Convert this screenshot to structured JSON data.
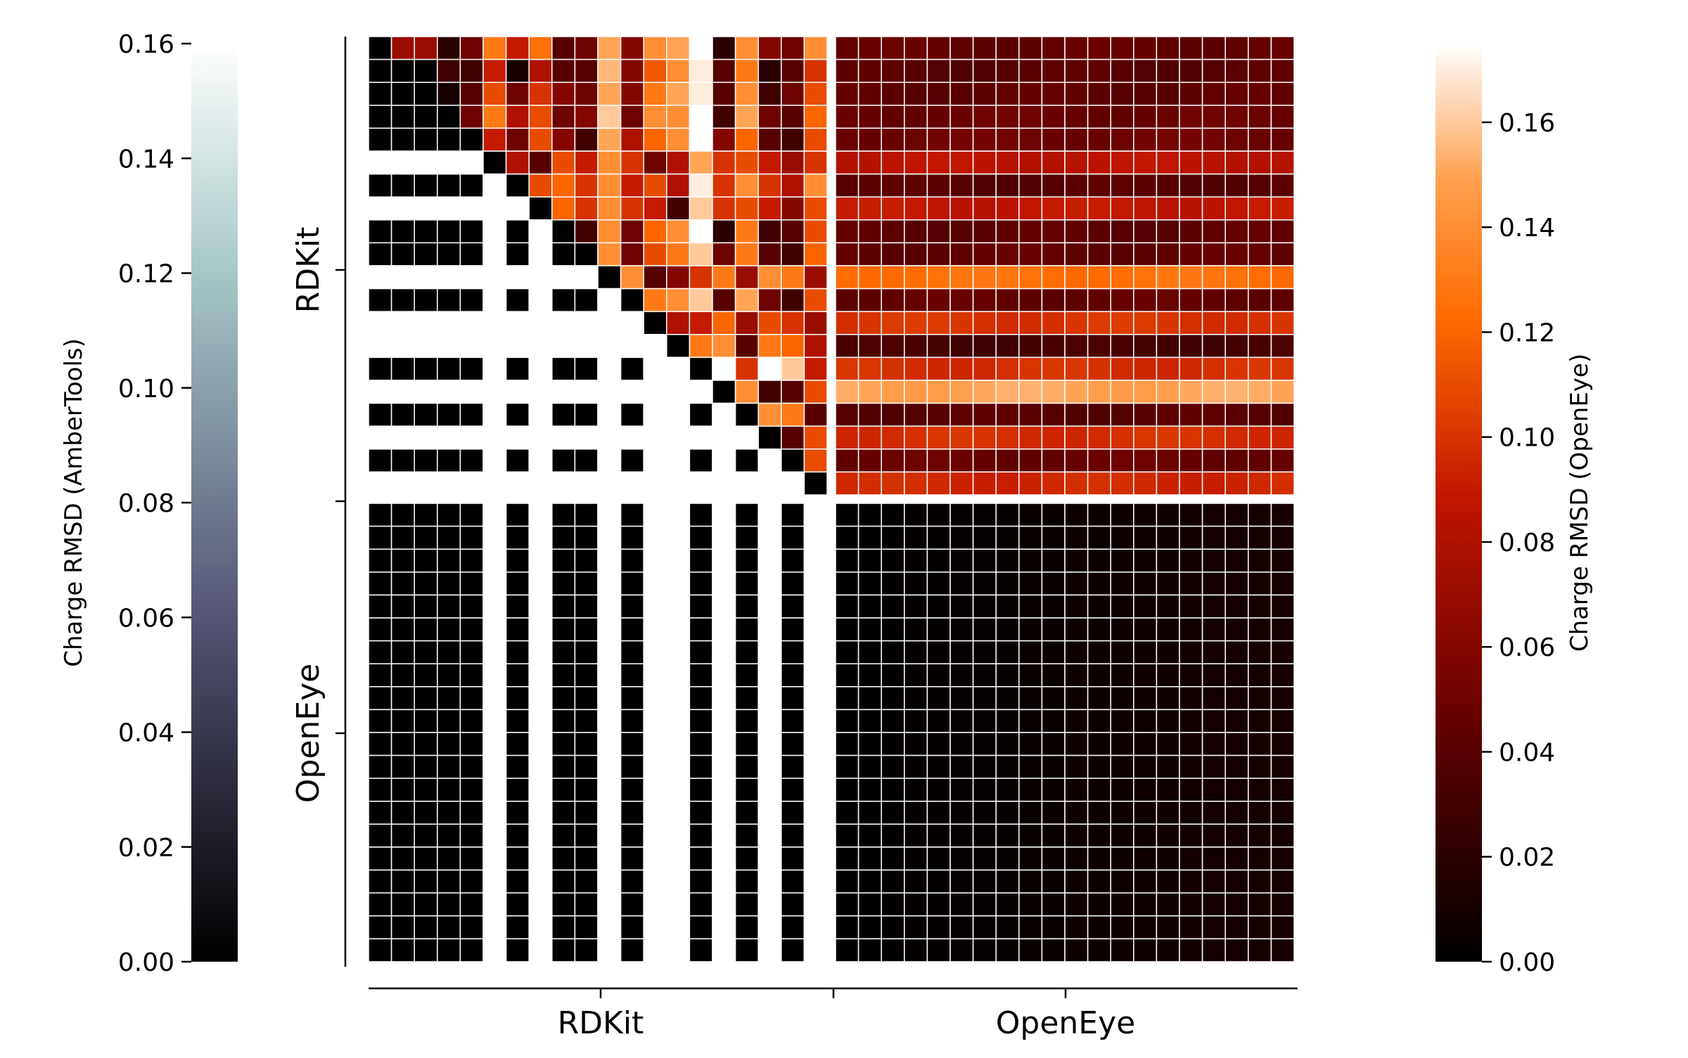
{
  "chart_data": {
    "type": "heatmap",
    "title": "",
    "xlabel": "",
    "ylabel": "",
    "row_groups": [
      {
        "name": "RDKit",
        "count": 20
      },
      {
        "name": "OpenEye",
        "count": 20
      }
    ],
    "col_groups": [
      {
        "name": "RDKit",
        "count": 20
      },
      {
        "name": "OpenEye",
        "count": 20
      }
    ],
    "grid": true,
    "grid_color": "#ffffff",
    "group_separator_color": "#ffffff",
    "lower_triangle_colorbar": {
      "label": "Charge RMSD (AmberTools)",
      "colormap": "bone",
      "range": [
        0.0,
        0.16
      ],
      "ticks": [
        0.0,
        0.02,
        0.04,
        0.06,
        0.08,
        0.1,
        0.12,
        0.14,
        0.16
      ],
      "tick_labels": [
        "0.00",
        "0.02",
        "0.04",
        "0.06",
        "0.08",
        "0.10",
        "0.12",
        "0.14",
        "0.16"
      ],
      "side": "left"
    },
    "upper_triangle_colorbar": {
      "label": "Charge RMSD (OpenEye)",
      "colormap": "gist_heat",
      "range": [
        0.0,
        0.175
      ],
      "ticks": [
        0.0,
        0.02,
        0.04,
        0.06,
        0.08,
        0.1,
        0.12,
        0.14,
        0.16
      ],
      "tick_labels": [
        "0.00",
        "0.02",
        "0.04",
        "0.06",
        "0.08",
        "0.10",
        "0.12",
        "0.14",
        "0.16"
      ],
      "side": "right"
    },
    "rdkit_conformer_rmsd_to_openeye": [
      0.045,
      0.04,
      0.043,
      0.048,
      0.05,
      0.085,
      0.04,
      0.088,
      0.042,
      0.044,
      0.125,
      0.045,
      0.1,
      0.032,
      0.098,
      0.15,
      0.04,
      0.098,
      0.047,
      0.095
    ],
    "rdkit_symmetric_pattern": [
      1,
      1,
      1,
      1,
      1,
      0,
      1,
      0,
      1,
      1,
      0,
      1,
      0,
      0,
      1,
      0,
      1,
      0,
      1,
      0
    ],
    "rdkit_pairwise_upper": [
      [
        0.0,
        0.07,
        0.07,
        0.02,
        0.05,
        0.13,
        0.09,
        0.125,
        0.04,
        0.05,
        0.15,
        0.06,
        0.14,
        0.15,
        0.175,
        0.02,
        0.14,
        0.06,
        0.05,
        0.14
      ],
      [
        0.0,
        0.0,
        0.0,
        0.03,
        0.03,
        0.09,
        0.01,
        0.08,
        0.04,
        0.04,
        0.155,
        0.06,
        0.115,
        0.14,
        0.17,
        0.04,
        0.13,
        0.02,
        0.04,
        0.1
      ],
      [
        0.0,
        0.0,
        0.0,
        0.01,
        0.04,
        0.11,
        0.05,
        0.1,
        0.06,
        0.05,
        0.15,
        0.06,
        0.13,
        0.15,
        0.17,
        0.04,
        0.14,
        0.03,
        0.05,
        0.11
      ],
      [
        0.0,
        0.0,
        0.0,
        0.0,
        0.05,
        0.13,
        0.08,
        0.11,
        0.05,
        0.06,
        0.16,
        0.05,
        0.14,
        0.14,
        0.175,
        0.03,
        0.15,
        0.05,
        0.04,
        0.12
      ],
      [
        0.0,
        0.0,
        0.0,
        0.0,
        0.0,
        0.09,
        0.05,
        0.11,
        0.06,
        0.03,
        0.15,
        0.08,
        0.12,
        0.14,
        0.175,
        0.06,
        0.12,
        0.04,
        0.03,
        0.11
      ],
      [
        0.0,
        0.0,
        0.0,
        0.0,
        0.0,
        0.0,
        0.08,
        0.04,
        0.11,
        0.09,
        0.14,
        0.1,
        0.05,
        0.08,
        0.15,
        0.1,
        0.11,
        0.09,
        0.07,
        0.1
      ],
      [
        0.0,
        0.0,
        0.0,
        0.0,
        0.0,
        0.0,
        0.0,
        0.11,
        0.12,
        0.1,
        0.14,
        0.09,
        0.11,
        0.08,
        0.17,
        0.1,
        0.14,
        0.1,
        0.08,
        0.14
      ],
      [
        0.0,
        0.0,
        0.0,
        0.0,
        0.0,
        0.0,
        0.0,
        0.0,
        0.12,
        0.1,
        0.14,
        0.1,
        0.09,
        0.03,
        0.16,
        0.1,
        0.11,
        0.09,
        0.06,
        0.11
      ],
      [
        0.0,
        0.0,
        0.0,
        0.0,
        0.0,
        0.0,
        0.0,
        0.0,
        0.0,
        0.03,
        0.14,
        0.05,
        0.12,
        0.14,
        0.175,
        0.02,
        0.13,
        0.03,
        0.04,
        0.11
      ],
      [
        0.0,
        0.0,
        0.0,
        0.0,
        0.0,
        0.0,
        0.0,
        0.0,
        0.0,
        0.0,
        0.14,
        0.05,
        0.11,
        0.13,
        0.16,
        0.05,
        0.13,
        0.04,
        0.03,
        0.12
      ],
      [
        0.0,
        0.0,
        0.0,
        0.0,
        0.0,
        0.0,
        0.0,
        0.0,
        0.0,
        0.0,
        0.0,
        0.14,
        0.04,
        0.06,
        0.1,
        0.13,
        0.07,
        0.14,
        0.13,
        0.07
      ],
      [
        0.0,
        0.0,
        0.0,
        0.0,
        0.0,
        0.0,
        0.0,
        0.0,
        0.0,
        0.0,
        0.0,
        0.0,
        0.13,
        0.14,
        0.16,
        0.04,
        0.15,
        0.05,
        0.03,
        0.11
      ],
      [
        0.0,
        0.0,
        0.0,
        0.0,
        0.0,
        0.0,
        0.0,
        0.0,
        0.0,
        0.0,
        0.0,
        0.0,
        0.0,
        0.08,
        0.09,
        0.12,
        0.07,
        0.11,
        0.1,
        0.07
      ],
      [
        0.0,
        0.0,
        0.0,
        0.0,
        0.0,
        0.0,
        0.0,
        0.0,
        0.0,
        0.0,
        0.0,
        0.0,
        0.0,
        0.0,
        0.13,
        0.14,
        0.04,
        0.13,
        0.12,
        0.08
      ],
      [
        0.0,
        0.0,
        0.0,
        0.0,
        0.0,
        0.0,
        0.0,
        0.0,
        0.0,
        0.0,
        0.0,
        0.0,
        0.0,
        0.0,
        0.0,
        0.175,
        0.1,
        0.175,
        0.16,
        0.09
      ],
      [
        0.0,
        0.0,
        0.0,
        0.0,
        0.0,
        0.0,
        0.0,
        0.0,
        0.0,
        0.0,
        0.0,
        0.0,
        0.0,
        0.0,
        0.0,
        0.0,
        0.14,
        0.03,
        0.04,
        0.11
      ],
      [
        0.0,
        0.0,
        0.0,
        0.0,
        0.0,
        0.0,
        0.0,
        0.0,
        0.0,
        0.0,
        0.0,
        0.0,
        0.0,
        0.0,
        0.0,
        0.0,
        0.0,
        0.14,
        0.13,
        0.04
      ],
      [
        0.0,
        0.0,
        0.0,
        0.0,
        0.0,
        0.0,
        0.0,
        0.0,
        0.0,
        0.0,
        0.0,
        0.0,
        0.0,
        0.0,
        0.0,
        0.0,
        0.0,
        0.0,
        0.04,
        0.11
      ],
      [
        0.0,
        0.0,
        0.0,
        0.0,
        0.0,
        0.0,
        0.0,
        0.0,
        0.0,
        0.0,
        0.0,
        0.0,
        0.0,
        0.0,
        0.0,
        0.0,
        0.0,
        0.0,
        0.0,
        0.11
      ],
      [
        0.0,
        0.0,
        0.0,
        0.0,
        0.0,
        0.0,
        0.0,
        0.0,
        0.0,
        0.0,
        0.0,
        0.0,
        0.0,
        0.0,
        0.0,
        0.0,
        0.0,
        0.0,
        0.0,
        0.0
      ]
    ],
    "openeye_pairwise_max": 0.012
  }
}
